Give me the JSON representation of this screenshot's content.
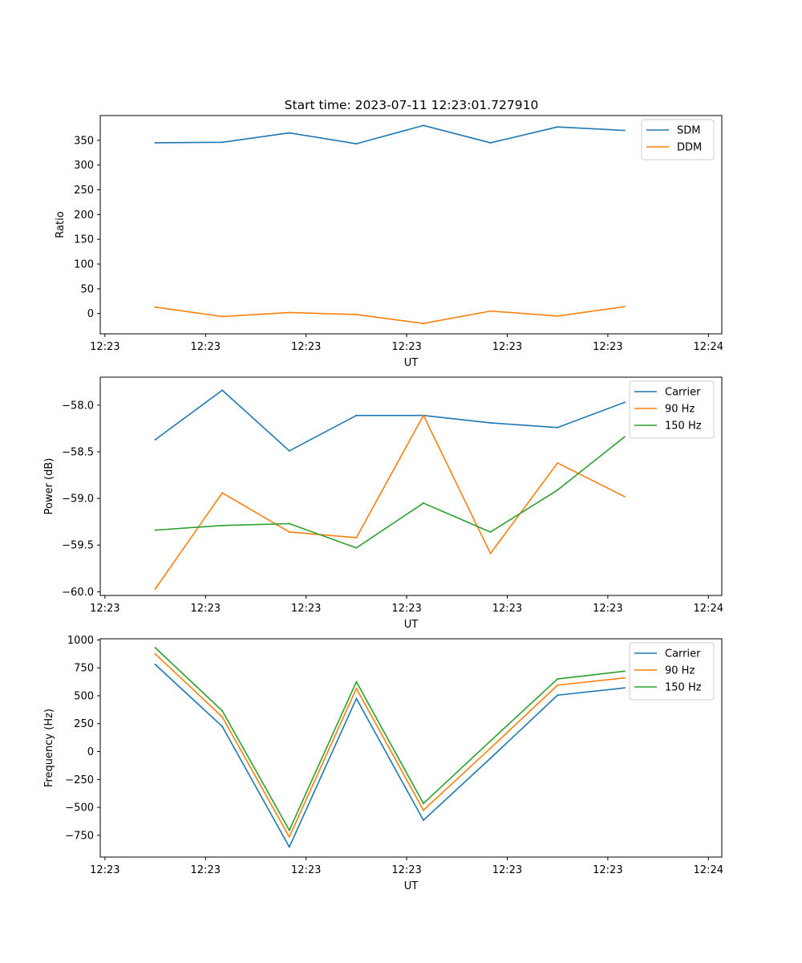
{
  "figure_title": "Start time: 2023-07-11 12:23:01.727910",
  "colors": {
    "blue": "#1f77b4",
    "orange": "#ff7f0e",
    "green": "#2ca02c"
  },
  "chart_data": [
    {
      "type": "line",
      "title": "Start time: 2023-07-11 12:23:01.727910",
      "xlabel": "UT",
      "ylabel": "Ratio",
      "x": [
        1,
        2,
        3,
        4,
        5,
        6,
        7,
        8
      ],
      "xlim": [
        0.18,
        9.45
      ],
      "x_ticks": [
        0.25,
        1.75,
        3.25,
        4.75,
        6.25,
        7.75,
        9.25
      ],
      "x_tick_labels": [
        "12:23",
        "12:23",
        "12:23",
        "12:23",
        "12:23",
        "12:23",
        "12:24"
      ],
      "ylim": [
        -41,
        400
      ],
      "y_ticks": [
        0,
        50,
        100,
        150,
        200,
        250,
        300,
        350
      ],
      "y_tick_labels": [
        "0",
        "50",
        "100",
        "150",
        "200",
        "250",
        "300",
        "350"
      ],
      "legend_position": "top-right",
      "series": [
        {
          "name": "SDM",
          "color": "#1f77b4",
          "values": [
            345,
            346,
            365,
            343,
            380,
            345,
            377,
            370
          ]
        },
        {
          "name": "DDM",
          "color": "#ff7f0e",
          "values": [
            13,
            -6,
            2,
            -2,
            -20,
            5,
            -5,
            14
          ]
        }
      ]
    },
    {
      "type": "line",
      "title": "",
      "xlabel": "UT",
      "ylabel": "Power (dB)",
      "x": [
        1,
        2,
        3,
        4,
        5,
        6,
        7,
        8
      ],
      "xlim": [
        0.18,
        9.45
      ],
      "x_ticks": [
        0.25,
        1.75,
        3.25,
        4.75,
        6.25,
        7.75,
        9.25
      ],
      "x_tick_labels": [
        "12:23",
        "12:23",
        "12:23",
        "12:23",
        "12:23",
        "12:23",
        "12:24"
      ],
      "ylim": [
        -60.04,
        -57.7
      ],
      "y_ticks": [
        -60.0,
        -59.5,
        -59.0,
        -58.5,
        -58.0
      ],
      "y_tick_labels": [
        "−60.0",
        "−59.5",
        "−59.0",
        "−58.5",
        "−58.0"
      ],
      "legend_position": "top-right",
      "series": [
        {
          "name": "Carrier",
          "color": "#1f77b4",
          "values": [
            -58.37,
            -57.84,
            -58.49,
            -58.11,
            -58.11,
            -58.19,
            -58.24,
            -57.97
          ]
        },
        {
          "name": "90 Hz",
          "color": "#ff7f0e",
          "values": [
            -59.97,
            -58.94,
            -59.36,
            -59.42,
            -58.11,
            -59.59,
            -58.62,
            -58.98
          ]
        },
        {
          "name": "150 Hz",
          "color": "#2ca02c",
          "values": [
            -59.34,
            -59.29,
            -59.27,
            -59.53,
            -59.05,
            -59.36,
            -58.91,
            -58.34
          ]
        }
      ]
    },
    {
      "type": "line",
      "title": "",
      "xlabel": "UT",
      "ylabel": "Frequency (Hz)",
      "x": [
        1,
        2,
        3,
        4,
        5,
        6,
        7,
        8
      ],
      "xlim": [
        0.18,
        9.45
      ],
      "x_ticks": [
        0.25,
        1.75,
        3.25,
        4.75,
        6.25,
        7.75,
        9.25
      ],
      "x_tick_labels": [
        "12:23",
        "12:23",
        "12:23",
        "12:23",
        "12:23",
        "12:23",
        "12:24"
      ],
      "ylim": [
        -945,
        1010
      ],
      "y_ticks": [
        -750,
        -500,
        -250,
        0,
        250,
        500,
        750,
        1000
      ],
      "y_tick_labels": [
        "−750",
        "−500",
        "−250",
        "0",
        "250",
        "500",
        "750",
        "1000"
      ],
      "legend_position": "top-right",
      "series": [
        {
          "name": "Carrier",
          "color": "#1f77b4",
          "values": [
            780,
            225,
            -855,
            475,
            -615,
            -60,
            505,
            570
          ]
        },
        {
          "name": "90 Hz",
          "color": "#ff7f0e",
          "values": [
            875,
            310,
            -765,
            565,
            -525,
            30,
            595,
            660
          ]
        },
        {
          "name": "150 Hz",
          "color": "#2ca02c",
          "values": [
            930,
            365,
            -705,
            625,
            -465,
            95,
            650,
            720
          ]
        }
      ]
    }
  ]
}
